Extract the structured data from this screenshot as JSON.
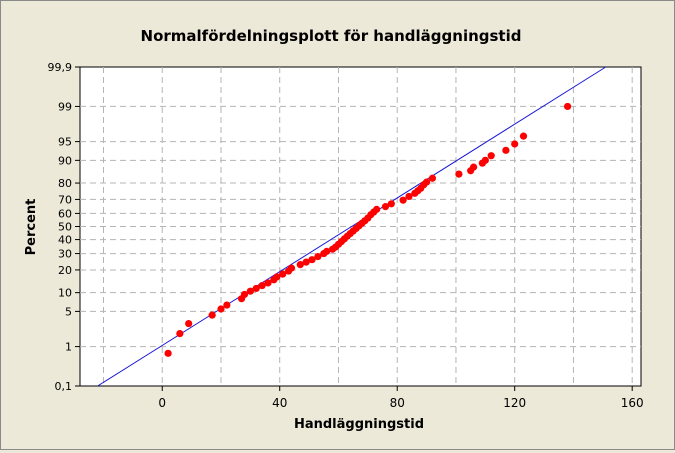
{
  "chart_data": {
    "type": "scatter",
    "title": "Normalfördelningsplott för handläggningstid",
    "xlabel": "Handläggningstid",
    "ylabel": "Percent",
    "xlim": [
      -28,
      163
    ],
    "x_ticks": [
      0,
      40,
      80,
      120,
      160
    ],
    "y_scale": "normal-probability",
    "ylim": [
      0.1,
      99.9
    ],
    "y_ticks": [
      0.1,
      1,
      5,
      10,
      20,
      30,
      40,
      50,
      60,
      70,
      80,
      90,
      95,
      99,
      99.9
    ],
    "y_tick_labels": [
      "0,1",
      "1",
      "5",
      "10",
      "20",
      "30",
      "40",
      "50",
      "60",
      "70",
      "80",
      "90",
      "95",
      "99",
      "99,9"
    ],
    "grid": true,
    "colors": {
      "points": "#ff0000",
      "fit_line": "#1a1ad6",
      "grid": "#b4b4b4",
      "background": "#ece9d8"
    },
    "fit_line": [
      [
        -22,
        0.1
      ],
      [
        151,
        99.9
      ]
    ],
    "points": [
      [
        2,
        0.7
      ],
      [
        6,
        1.9
      ],
      [
        9,
        3.0
      ],
      [
        17,
        4.3
      ],
      [
        20,
        5.5
      ],
      [
        22,
        6.4
      ],
      [
        27,
        8.1
      ],
      [
        28,
        9.4
      ],
      [
        30,
        10.5
      ],
      [
        32,
        11.5
      ],
      [
        34,
        12.6
      ],
      [
        36,
        13.7
      ],
      [
        38,
        15.1
      ],
      [
        39,
        16.4
      ],
      [
        41,
        17.8
      ],
      [
        43,
        19.4
      ],
      [
        44,
        21.0
      ],
      [
        47,
        23.0
      ],
      [
        49,
        24.5
      ],
      [
        51,
        26.0
      ],
      [
        53,
        28.0
      ],
      [
        55,
        30.0
      ],
      [
        56,
        31.5
      ],
      [
        58,
        33.0
      ],
      [
        59,
        34.5
      ],
      [
        60,
        36.5
      ],
      [
        61,
        38.5
      ],
      [
        62,
        40.5
      ],
      [
        63,
        42.5
      ],
      [
        64,
        44.5
      ],
      [
        65,
        46.5
      ],
      [
        66,
        48.5
      ],
      [
        67,
        50.5
      ],
      [
        68,
        52.5
      ],
      [
        69,
        54.5
      ],
      [
        70,
        56.5
      ],
      [
        71,
        59.0
      ],
      [
        72,
        61.0
      ],
      [
        73,
        63.0
      ],
      [
        76,
        65.0
      ],
      [
        78,
        67.0
      ],
      [
        82,
        69.5
      ],
      [
        84,
        72.0
      ],
      [
        86,
        74.0
      ],
      [
        87,
        75.5
      ],
      [
        88,
        77.0
      ],
      [
        89,
        79.0
      ],
      [
        90,
        80.5
      ],
      [
        92,
        82.5
      ],
      [
        101,
        84.5
      ],
      [
        105,
        86.0
      ],
      [
        106,
        87.5
      ],
      [
        109,
        89.0
      ],
      [
        110,
        90.0
      ],
      [
        112,
        91.5
      ],
      [
        117,
        93.0
      ],
      [
        120,
        94.5
      ],
      [
        123,
        96.0
      ],
      [
        138,
        99.0
      ]
    ]
  }
}
